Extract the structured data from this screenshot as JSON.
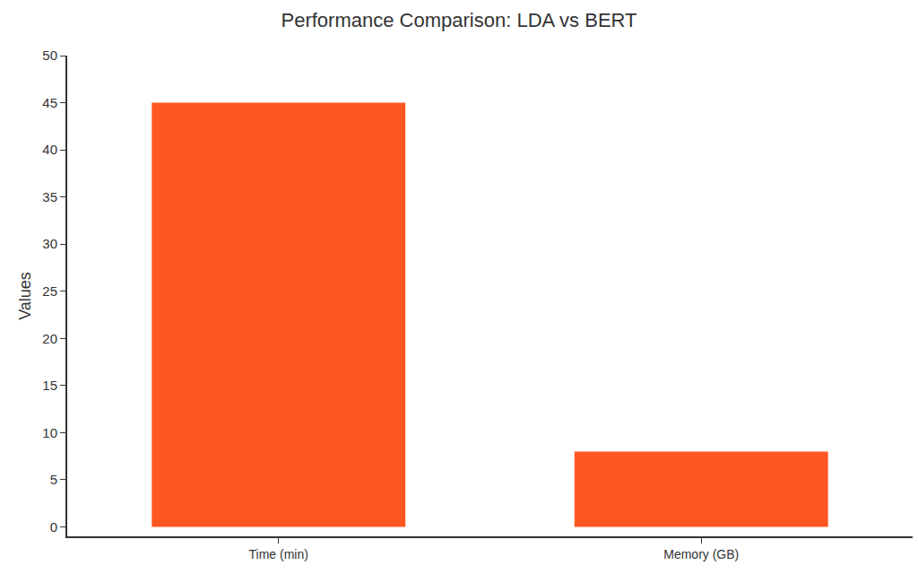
{
  "chart_data": {
    "type": "bar",
    "title": "Performance Comparison: LDA vs BERT",
    "y_label": "Values",
    "categories": [
      "Time (min)",
      "Memory (GB)"
    ],
    "values": [
      45,
      8
    ],
    "color": "#ff5722",
    "ylim": [
      -1,
      50
    ],
    "yticks": [
      0,
      5,
      10,
      15,
      20,
      25,
      30,
      35,
      40,
      45,
      50
    ],
    "grid": false
  }
}
